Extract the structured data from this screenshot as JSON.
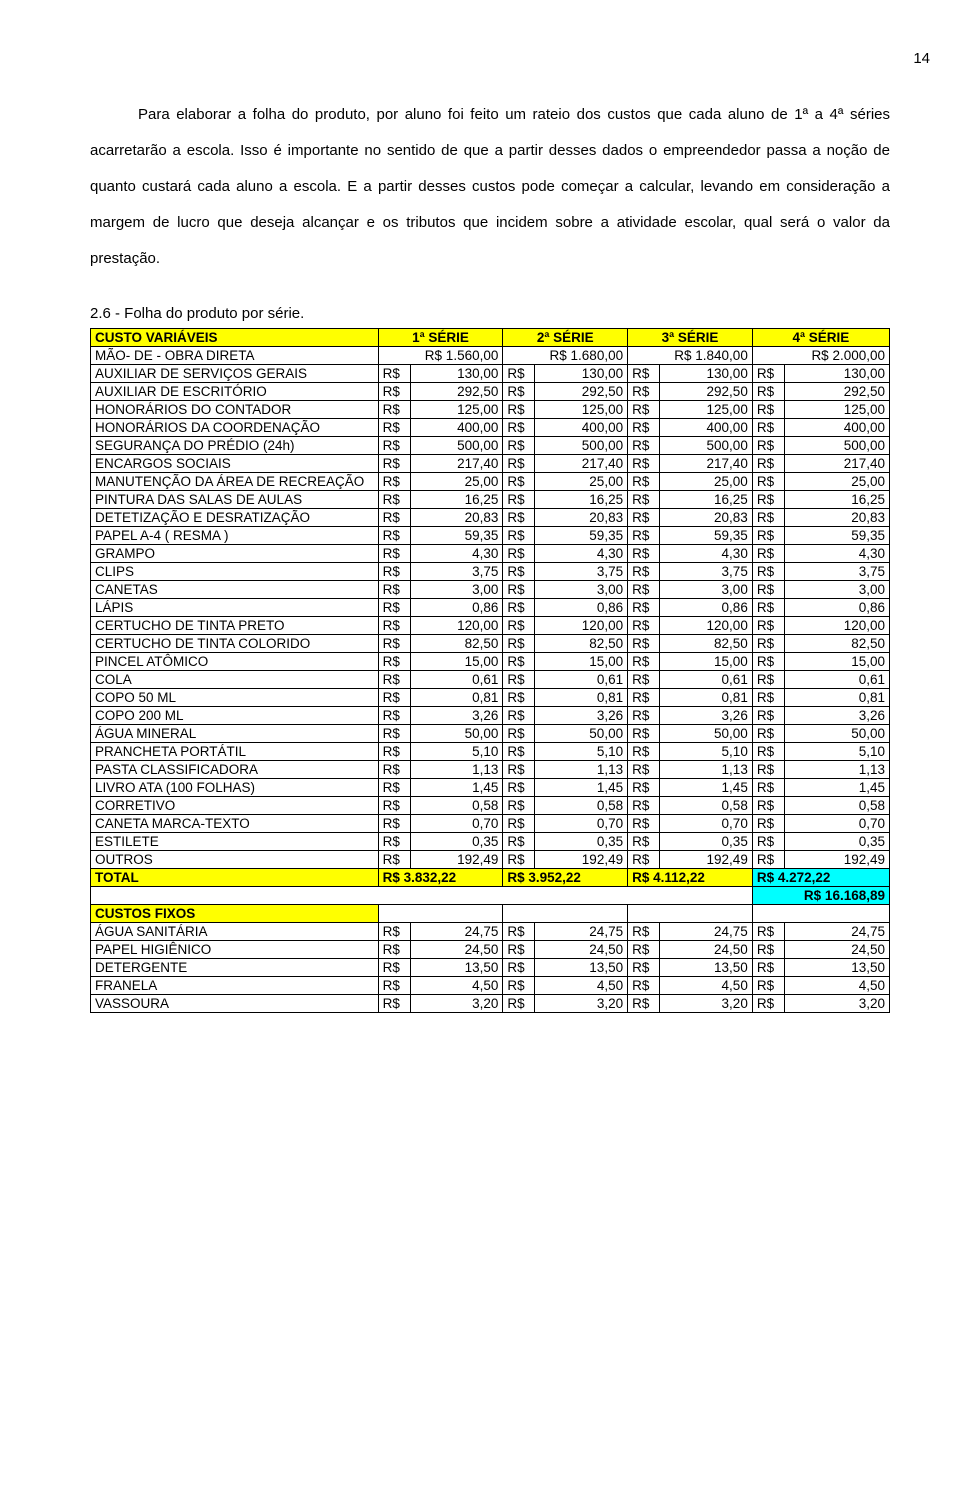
{
  "page_number": "14",
  "paragraph": "Para elaborar a folha do produto, por aluno foi feito um rateio dos custos que cada aluno de 1ª a 4ª séries acarretarão a escola. Isso é importante no sentido de que a partir desses dados o empreendedor passa a noção de quanto custará cada aluno a escola. E a partir desses custos pode começar a calcular, levando em consideração a margem de lucro que deseja alcançar e os tributos que incidem sobre a atividade escolar, qual será o valor da prestação.",
  "caption": "2.6 - Folha do produto por série.",
  "headers": {
    "h0": "CUSTO VARIÁVEIS",
    "h1": "1ª SÉRIE",
    "h2": "2ª SÉRIE",
    "h3": "3ª SÉRIE",
    "h4": "4ª SÉRIE"
  },
  "currency": "R$",
  "var_rows": [
    {
      "label": "MÃO- DE - OBRA DIRETA",
      "v": [
        "1.560,00",
        "1.680,00",
        "1.840,00",
        "2.000,00"
      ],
      "plain": true
    },
    {
      "label": "AUXILIAR DE SERVIÇOS GERAIS",
      "v": [
        "130,00",
        "130,00",
        "130,00",
        "130,00"
      ]
    },
    {
      "label": "AUXILIAR DE ESCRITÓRIO",
      "v": [
        "292,50",
        "292,50",
        "292,50",
        "292,50"
      ]
    },
    {
      "label": "HONORÁRIOS DO CONTADOR",
      "v": [
        "125,00",
        "125,00",
        "125,00",
        "125,00"
      ]
    },
    {
      "label": "HONORÁRIOS DA COORDENAÇÃO",
      "v": [
        "400,00",
        "400,00",
        "400,00",
        "400,00"
      ]
    },
    {
      "label": "SEGURANÇA DO PRÉDIO (24h)",
      "v": [
        "500,00",
        "500,00",
        "500,00",
        "500,00"
      ]
    },
    {
      "label": "ENCARGOS SOCIAIS",
      "v": [
        "217,40",
        "217,40",
        "217,40",
        "217,40"
      ]
    },
    {
      "label": "MANUTENÇÃO DA ÁREA DE RECREAÇÃO",
      "v": [
        "25,00",
        "25,00",
        "25,00",
        "25,00"
      ]
    },
    {
      "label": "PINTURA DAS SALAS DE AULAS",
      "v": [
        "16,25",
        "16,25",
        "16,25",
        "16,25"
      ]
    },
    {
      "label": "DETETIZAÇÃO E DESRATIZAÇÃO",
      "v": [
        "20,83",
        "20,83",
        "20,83",
        "20,83"
      ]
    },
    {
      "label": "PAPEL A-4 ( RESMA )",
      "v": [
        "59,35",
        "59,35",
        "59,35",
        "59,35"
      ]
    },
    {
      "label": "GRAMPO",
      "v": [
        "4,30",
        "4,30",
        "4,30",
        "4,30"
      ]
    },
    {
      "label": "CLIPS",
      "v": [
        "3,75",
        "3,75",
        "3,75",
        "3,75"
      ]
    },
    {
      "label": "CANETAS",
      "v": [
        "3,00",
        "3,00",
        "3,00",
        "3,00"
      ]
    },
    {
      "label": "LÁPIS",
      "v": [
        "0,86",
        "0,86",
        "0,86",
        "0,86"
      ]
    },
    {
      "label": "CERTUCHO DE TINTA PRETO",
      "v": [
        "120,00",
        "120,00",
        "120,00",
        "120,00"
      ]
    },
    {
      "label": "CERTUCHO DE TINTA COLORIDO",
      "v": [
        "82,50",
        "82,50",
        "82,50",
        "82,50"
      ]
    },
    {
      "label": "PINCEL ATÔMICO",
      "v": [
        "15,00",
        "15,00",
        "15,00",
        "15,00"
      ]
    },
    {
      "label": "COLA",
      "v": [
        "0,61",
        "0,61",
        "0,61",
        "0,61"
      ]
    },
    {
      "label": "COPO 50 ML",
      "v": [
        "0,81",
        "0,81",
        "0,81",
        "0,81"
      ]
    },
    {
      "label": "COPO 200 ML",
      "v": [
        "3,26",
        "3,26",
        "3,26",
        "3,26"
      ]
    },
    {
      "label": "ÁGUA MINERAL",
      "v": [
        "50,00",
        "50,00",
        "50,00",
        "50,00"
      ]
    },
    {
      "label": "PRANCHETA PORTÁTIL",
      "v": [
        "5,10",
        "5,10",
        "5,10",
        "5,10"
      ]
    },
    {
      "label": "PASTA CLASSIFICADORA",
      "v": [
        "1,13",
        "1,13",
        "1,13",
        "1,13"
      ]
    },
    {
      "label": "LIVRO ATA (100 FOLHAS)",
      "v": [
        "1,45",
        "1,45",
        "1,45",
        "1,45"
      ]
    },
    {
      "label": "CORRETIVO",
      "v": [
        "0,58",
        "0,58",
        "0,58",
        "0,58"
      ]
    },
    {
      "label": "CANETA MARCA-TEXTO",
      "v": [
        "0,70",
        "0,70",
        "0,70",
        "0,70"
      ]
    },
    {
      "label": "ESTILETE",
      "v": [
        "0,35",
        "0,35",
        "0,35",
        "0,35"
      ]
    },
    {
      "label": "OUTROS",
      "v": [
        "192,49",
        "192,49",
        "192,49",
        "192,49"
      ]
    }
  ],
  "total": {
    "label": "TOTAL",
    "v": [
      "3.832,22",
      "3.952,22",
      "4.112,22",
      "4.272,22"
    ]
  },
  "grand_total": "16.168,89",
  "fixed_header": "CUSTOS FIXOS",
  "fixed_rows": [
    {
      "label": "ÁGUA SANITÁRIA",
      "v": [
        "24,75",
        "24,75",
        "24,75",
        "24,75"
      ]
    },
    {
      "label": "PAPEL HIGIÊNICO",
      "v": [
        "24,50",
        "24,50",
        "24,50",
        "24,50"
      ]
    },
    {
      "label": "DETERGENTE",
      "v": [
        "13,50",
        "13,50",
        "13,50",
        "13,50"
      ]
    },
    {
      "label": "FRANELA",
      "v": [
        "4,50",
        "4,50",
        "4,50",
        "4,50"
      ]
    },
    {
      "label": "VASSOURA",
      "v": [
        "3,20",
        "3,20",
        "3,20",
        "3,20"
      ]
    }
  ],
  "colors": {
    "yellow": "#ffff00",
    "cyan": "#00ffff",
    "border": "#000000",
    "text": "#000000",
    "background": "#ffffff"
  },
  "typography": {
    "body_font": "Arial",
    "body_size_pt": 12,
    "table_size_pt": 10
  }
}
